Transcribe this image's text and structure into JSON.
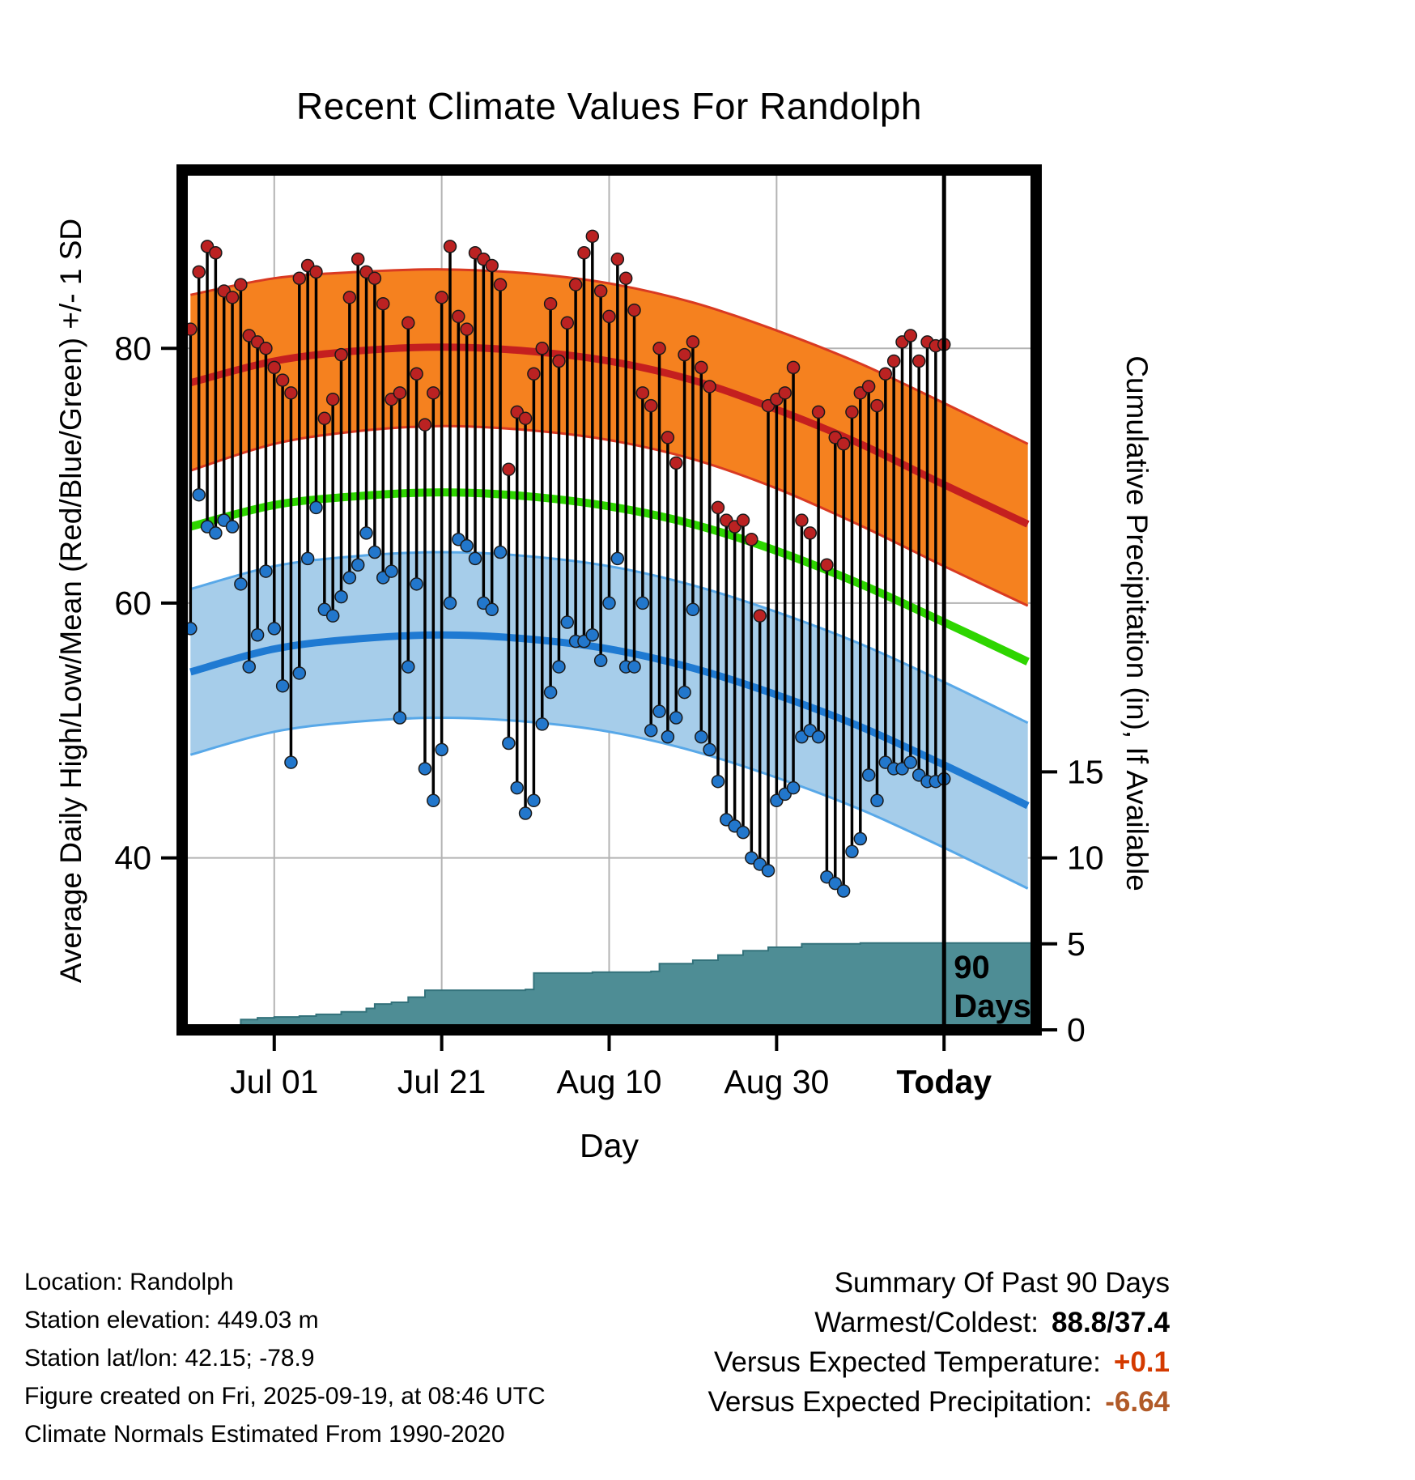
{
  "chart_data": {
    "type": "line",
    "title": "Recent Climate Values For Randolph",
    "xlabel": "Day",
    "ylabel_left": "Average Daily High/Low/Mean (Red/Blue/Green) +/- 1 SD",
    "ylabel_right": "Cumulative Precipitation (in), If Available",
    "x_domain_days": [
      -1,
      101
    ],
    "temp_ylim": [
      26.5,
      94
    ],
    "temp_ticks": [
      40,
      60,
      80
    ],
    "precip_ticks": [
      0,
      5,
      10,
      15
    ],
    "x_ticks": [
      {
        "day": 10,
        "label": "Jul 01",
        "bold": false
      },
      {
        "day": 30,
        "label": "Jul 21",
        "bold": false
      },
      {
        "day": 50,
        "label": "Aug 10",
        "bold": false
      },
      {
        "day": 70,
        "label": "Aug 30",
        "bold": false
      },
      {
        "day": 90,
        "label": "Today",
        "bold": true
      }
    ],
    "today_day": 90,
    "today_label_lines": [
      "90",
      "Days"
    ],
    "normals": {
      "sample_days": [
        0,
        10,
        20,
        30,
        40,
        50,
        60,
        70,
        80,
        90,
        100
      ],
      "high_upper": [
        84.2,
        85.5,
        86.0,
        86.2,
        85.9,
        85.1,
        83.6,
        81.4,
        78.8,
        75.7,
        72.5
      ],
      "high_mean": [
        77.3,
        79.0,
        79.8,
        80.1,
        79.8,
        79.0,
        77.5,
        75.2,
        72.5,
        69.3,
        66.2
      ],
      "high_lower": [
        70.4,
        72.5,
        73.5,
        73.9,
        73.6,
        72.8,
        71.3,
        69.0,
        66.1,
        62.9,
        59.8
      ],
      "mean": [
        66.0,
        67.7,
        68.4,
        68.7,
        68.4,
        67.6,
        66.2,
        64.1,
        61.5,
        58.5,
        55.4
      ],
      "low_upper": [
        61.1,
        62.9,
        63.7,
        64.0,
        63.7,
        62.9,
        61.4,
        59.3,
        56.8,
        53.8,
        50.6
      ],
      "low_mean": [
        54.6,
        56.4,
        57.2,
        57.5,
        57.2,
        56.4,
        54.9,
        52.8,
        50.3,
        47.3,
        44.1
      ],
      "low_lower": [
        48.1,
        49.9,
        50.7,
        51.0,
        50.7,
        49.9,
        48.4,
        46.3,
        43.8,
        40.8,
        37.6
      ]
    },
    "daily": {
      "start_day": 0,
      "high": [
        81.5,
        86,
        88,
        87.5,
        84.5,
        84,
        85,
        81,
        80.5,
        80,
        78.5,
        77.5,
        76.5,
        85.5,
        86.5,
        86,
        74.5,
        76,
        79.5,
        84,
        87,
        86,
        85.5,
        83.5,
        76,
        76.5,
        82,
        78,
        74,
        76.5,
        84,
        88,
        82.5,
        81.5,
        87.5,
        87,
        86.5,
        85,
        70.5,
        75,
        74.5,
        78,
        80,
        83.5,
        79,
        82,
        85,
        87.5,
        88.8,
        84.5,
        82.5,
        87,
        85.5,
        83,
        76.5,
        75.5,
        80,
        73,
        71,
        79.5,
        80.5,
        78.5,
        77,
        67.5,
        66.5,
        66,
        66.5,
        65,
        59,
        75.5,
        76,
        76.5,
        78.5,
        66.5,
        65.5,
        75,
        63,
        73,
        72.5,
        75,
        76.5,
        77,
        75.5,
        78,
        79,
        80.5,
        81,
        79,
        80.5,
        80.2,
        80.3
      ],
      "low": [
        58,
        68.5,
        66,
        65.5,
        66.5,
        66,
        61.5,
        55,
        57.5,
        62.5,
        58,
        53.5,
        47.5,
        54.5,
        63.5,
        67.5,
        59.5,
        59,
        60.5,
        62,
        63,
        65.5,
        64,
        62,
        62.5,
        51,
        55,
        61.5,
        47,
        44.5,
        48.5,
        60,
        65,
        64.5,
        63.5,
        60,
        59.5,
        64,
        49,
        45.5,
        43.5,
        44.5,
        50.5,
        53,
        55,
        58.5,
        57,
        57,
        57.5,
        55.5,
        60,
        63.5,
        55,
        55,
        60,
        50,
        51.5,
        49.5,
        51,
        53,
        59.5,
        49.5,
        48.5,
        46,
        43,
        42.5,
        42,
        40,
        39.5,
        39,
        44.5,
        45,
        45.5,
        49.5,
        50,
        49.5,
        38.5,
        38,
        37.4,
        40.5,
        41.5,
        46.5,
        44.5,
        47.5,
        47,
        47,
        47.5,
        46.5,
        46,
        46,
        46.2
      ]
    },
    "precip_steps": [
      [
        -1,
        0
      ],
      [
        5,
        0
      ],
      [
        6,
        0.6
      ],
      [
        8,
        0.7
      ],
      [
        10,
        0.75
      ],
      [
        13,
        0.8
      ],
      [
        15,
        0.9
      ],
      [
        18,
        1.05
      ],
      [
        21,
        1.25
      ],
      [
        22,
        1.5
      ],
      [
        24,
        1.6
      ],
      [
        26,
        1.9
      ],
      [
        28,
        2.3
      ],
      [
        40,
        2.35
      ],
      [
        41,
        3.3
      ],
      [
        48,
        3.35
      ],
      [
        55,
        3.4
      ],
      [
        56,
        3.85
      ],
      [
        60,
        4.05
      ],
      [
        63,
        4.35
      ],
      [
        66,
        4.6
      ],
      [
        69,
        4.8
      ],
      [
        73,
        5.0
      ],
      [
        80,
        5.05
      ],
      [
        101,
        5.05
      ]
    ],
    "colors": {
      "high_band": "#f5811f",
      "high_band_edge": "#d93a22",
      "high_mean": "#c41f1f",
      "mean_line": "#2ed500",
      "low_band": "#a6cdea",
      "low_band_edge": "#58a8e8",
      "low_mean": "#1f7ad2",
      "daily_line": "#000000",
      "high_dot": "#bb2222",
      "low_dot": "#2277cc",
      "precip_fill": "#4e8d95",
      "precip_edge": "#33727b",
      "grid": "#b3b3b3"
    }
  },
  "footer": {
    "lines": [
      "Location: Randolph",
      "Station elevation: 449.03 m",
      "Station lat/lon: 42.15; -78.9",
      "Figure created on Fri, 2025-09-19, at 08:46 UTC",
      "Climate Normals Estimated From 1990-2020"
    ]
  },
  "summary": {
    "title": "Summary Of Past 90 Days",
    "rows": [
      {
        "label": "Warmest/Coldest:",
        "value": "88.8/37.4",
        "value_color": "#000000"
      },
      {
        "label": "Versus Expected Temperature:",
        "value": "+0.1",
        "value_color": "#d43a00"
      },
      {
        "label": "Versus Expected Precipitation:",
        "value": "-6.64",
        "value_color": "#b15a28"
      }
    ]
  }
}
